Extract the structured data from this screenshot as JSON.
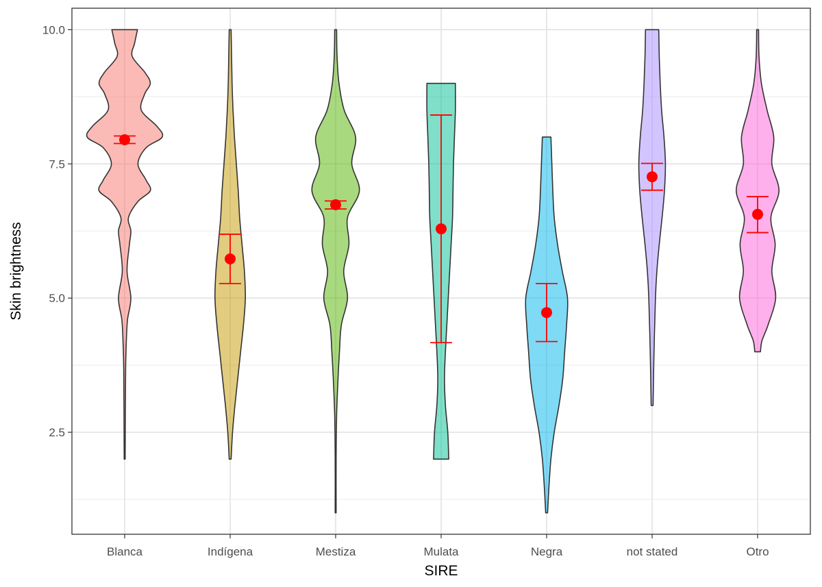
{
  "chart_data": {
    "type": "violin",
    "title": "",
    "xlabel": "SIRE",
    "ylabel": "Skin brightness",
    "ylim": [
      0.6,
      10.4
    ],
    "grid": true,
    "y_ticks": [
      2.5,
      5.0,
      7.5,
      10.0
    ],
    "y_tick_labels": [
      "2.5",
      "5.0",
      "7.5",
      "10.0"
    ],
    "categories": [
      "Blanca",
      "Indígena",
      "Mestiza",
      "Mulata",
      "Negra",
      "not stated",
      "Otro"
    ],
    "series": [
      {
        "name": "Blanca",
        "color": "#F8766D",
        "min": 2.0,
        "max": 10.0,
        "mean": 7.95,
        "ci_low": 7.88,
        "ci_high": 8.02,
        "density": [
          [
            2.0,
            0.01
          ],
          [
            3.0,
            0.015
          ],
          [
            3.7,
            0.02
          ],
          [
            4.2,
            0.035
          ],
          [
            4.6,
            0.06
          ],
          [
            5.0,
            0.13
          ],
          [
            5.5,
            0.05
          ],
          [
            6.0,
            0.1
          ],
          [
            6.25,
            0.13
          ],
          [
            6.5,
            0.08
          ],
          [
            6.8,
            0.28
          ],
          [
            7.0,
            0.54
          ],
          [
            7.2,
            0.45
          ],
          [
            7.5,
            0.28
          ],
          [
            7.8,
            0.45
          ],
          [
            8.0,
            0.79
          ],
          [
            8.2,
            0.68
          ],
          [
            8.5,
            0.35
          ],
          [
            8.8,
            0.42
          ],
          [
            9.0,
            0.54
          ],
          [
            9.2,
            0.43
          ],
          [
            9.5,
            0.16
          ],
          [
            9.75,
            0.21
          ],
          [
            10.0,
            0.27
          ]
        ]
      },
      {
        "name": "Indígena",
        "color": "#C49A00",
        "min": 2.0,
        "max": 10.0,
        "mean": 5.73,
        "ci_low": 5.27,
        "ci_high": 6.19,
        "density": [
          [
            2.0,
            0.02
          ],
          [
            2.5,
            0.05
          ],
          [
            3.0,
            0.1
          ],
          [
            3.5,
            0.16
          ],
          [
            4.0,
            0.22
          ],
          [
            4.5,
            0.28
          ],
          [
            5.0,
            0.32
          ],
          [
            5.5,
            0.3
          ],
          [
            6.0,
            0.25
          ],
          [
            6.5,
            0.2
          ],
          [
            7.0,
            0.17
          ],
          [
            7.5,
            0.13
          ],
          [
            8.0,
            0.09
          ],
          [
            8.5,
            0.06
          ],
          [
            9.0,
            0.04
          ],
          [
            9.5,
            0.03
          ],
          [
            10.0,
            0.02
          ]
        ]
      },
      {
        "name": "Mestiza",
        "color": "#53B400",
        "min": 1.0,
        "max": 10.0,
        "mean": 6.74,
        "ci_low": 6.66,
        "ci_high": 6.81,
        "density": [
          [
            1.0,
            0.01
          ],
          [
            2.0,
            0.01
          ],
          [
            2.8,
            0.02
          ],
          [
            3.5,
            0.05
          ],
          [
            4.0,
            0.08
          ],
          [
            4.5,
            0.12
          ],
          [
            5.0,
            0.25
          ],
          [
            5.5,
            0.17
          ],
          [
            6.0,
            0.28
          ],
          [
            6.5,
            0.25
          ],
          [
            7.0,
            0.5
          ],
          [
            7.5,
            0.34
          ],
          [
            8.0,
            0.42
          ],
          [
            8.5,
            0.18
          ],
          [
            9.0,
            0.07
          ],
          [
            9.5,
            0.03
          ],
          [
            10.0,
            0.02
          ]
        ]
      },
      {
        "name": "Mulata",
        "color": "#00C094",
        "min": 2.0,
        "max": 9.0,
        "mean": 6.29,
        "ci_low": 4.17,
        "ci_high": 8.41,
        "density": [
          [
            2.0,
            0.16
          ],
          [
            2.5,
            0.14
          ],
          [
            3.0,
            0.09
          ],
          [
            3.5,
            0.07
          ],
          [
            4.0,
            0.09
          ],
          [
            4.5,
            0.12
          ],
          [
            5.0,
            0.15
          ],
          [
            5.5,
            0.18
          ],
          [
            6.0,
            0.21
          ],
          [
            6.5,
            0.24
          ],
          [
            7.0,
            0.25
          ],
          [
            7.5,
            0.26
          ],
          [
            8.0,
            0.28
          ],
          [
            8.5,
            0.3
          ],
          [
            9.0,
            0.3
          ]
        ]
      },
      {
        "name": "Negra",
        "color": "#00B6EB",
        "min": 1.0,
        "max": 8.0,
        "mean": 4.73,
        "ci_low": 4.19,
        "ci_high": 5.27,
        "density": [
          [
            1.0,
            0.02
          ],
          [
            1.5,
            0.05
          ],
          [
            2.0,
            0.09
          ],
          [
            2.5,
            0.16
          ],
          [
            3.0,
            0.26
          ],
          [
            3.5,
            0.34
          ],
          [
            4.0,
            0.38
          ],
          [
            4.5,
            0.42
          ],
          [
            5.0,
            0.44
          ],
          [
            5.5,
            0.33
          ],
          [
            6.0,
            0.23
          ],
          [
            6.5,
            0.16
          ],
          [
            7.0,
            0.13
          ],
          [
            7.5,
            0.11
          ],
          [
            8.0,
            0.09
          ]
        ]
      },
      {
        "name": "not stated",
        "color": "#A58AFF",
        "min": 3.0,
        "max": 10.0,
        "mean": 7.26,
        "ci_low": 7.01,
        "ci_high": 7.51,
        "density": [
          [
            3.0,
            0.02
          ],
          [
            4.0,
            0.04
          ],
          [
            5.0,
            0.07
          ],
          [
            5.5,
            0.1
          ],
          [
            6.0,
            0.15
          ],
          [
            6.5,
            0.21
          ],
          [
            7.0,
            0.26
          ],
          [
            7.5,
            0.28
          ],
          [
            8.0,
            0.25
          ],
          [
            8.5,
            0.2
          ],
          [
            9.0,
            0.17
          ],
          [
            9.5,
            0.15
          ],
          [
            10.0,
            0.14
          ]
        ]
      },
      {
        "name": "Otro",
        "color": "#FB61D7",
        "min": 4.0,
        "max": 10.0,
        "mean": 6.56,
        "ci_low": 6.22,
        "ci_high": 6.89,
        "density": [
          [
            4.0,
            0.06
          ],
          [
            4.2,
            0.09
          ],
          [
            4.5,
            0.22
          ],
          [
            5.0,
            0.38
          ],
          [
            5.5,
            0.3
          ],
          [
            6.0,
            0.37
          ],
          [
            6.5,
            0.28
          ],
          [
            7.0,
            0.45
          ],
          [
            7.5,
            0.3
          ],
          [
            8.0,
            0.34
          ],
          [
            8.5,
            0.2
          ],
          [
            9.0,
            0.08
          ],
          [
            9.5,
            0.03
          ],
          [
            10.0,
            0.02
          ]
        ]
      }
    ]
  }
}
